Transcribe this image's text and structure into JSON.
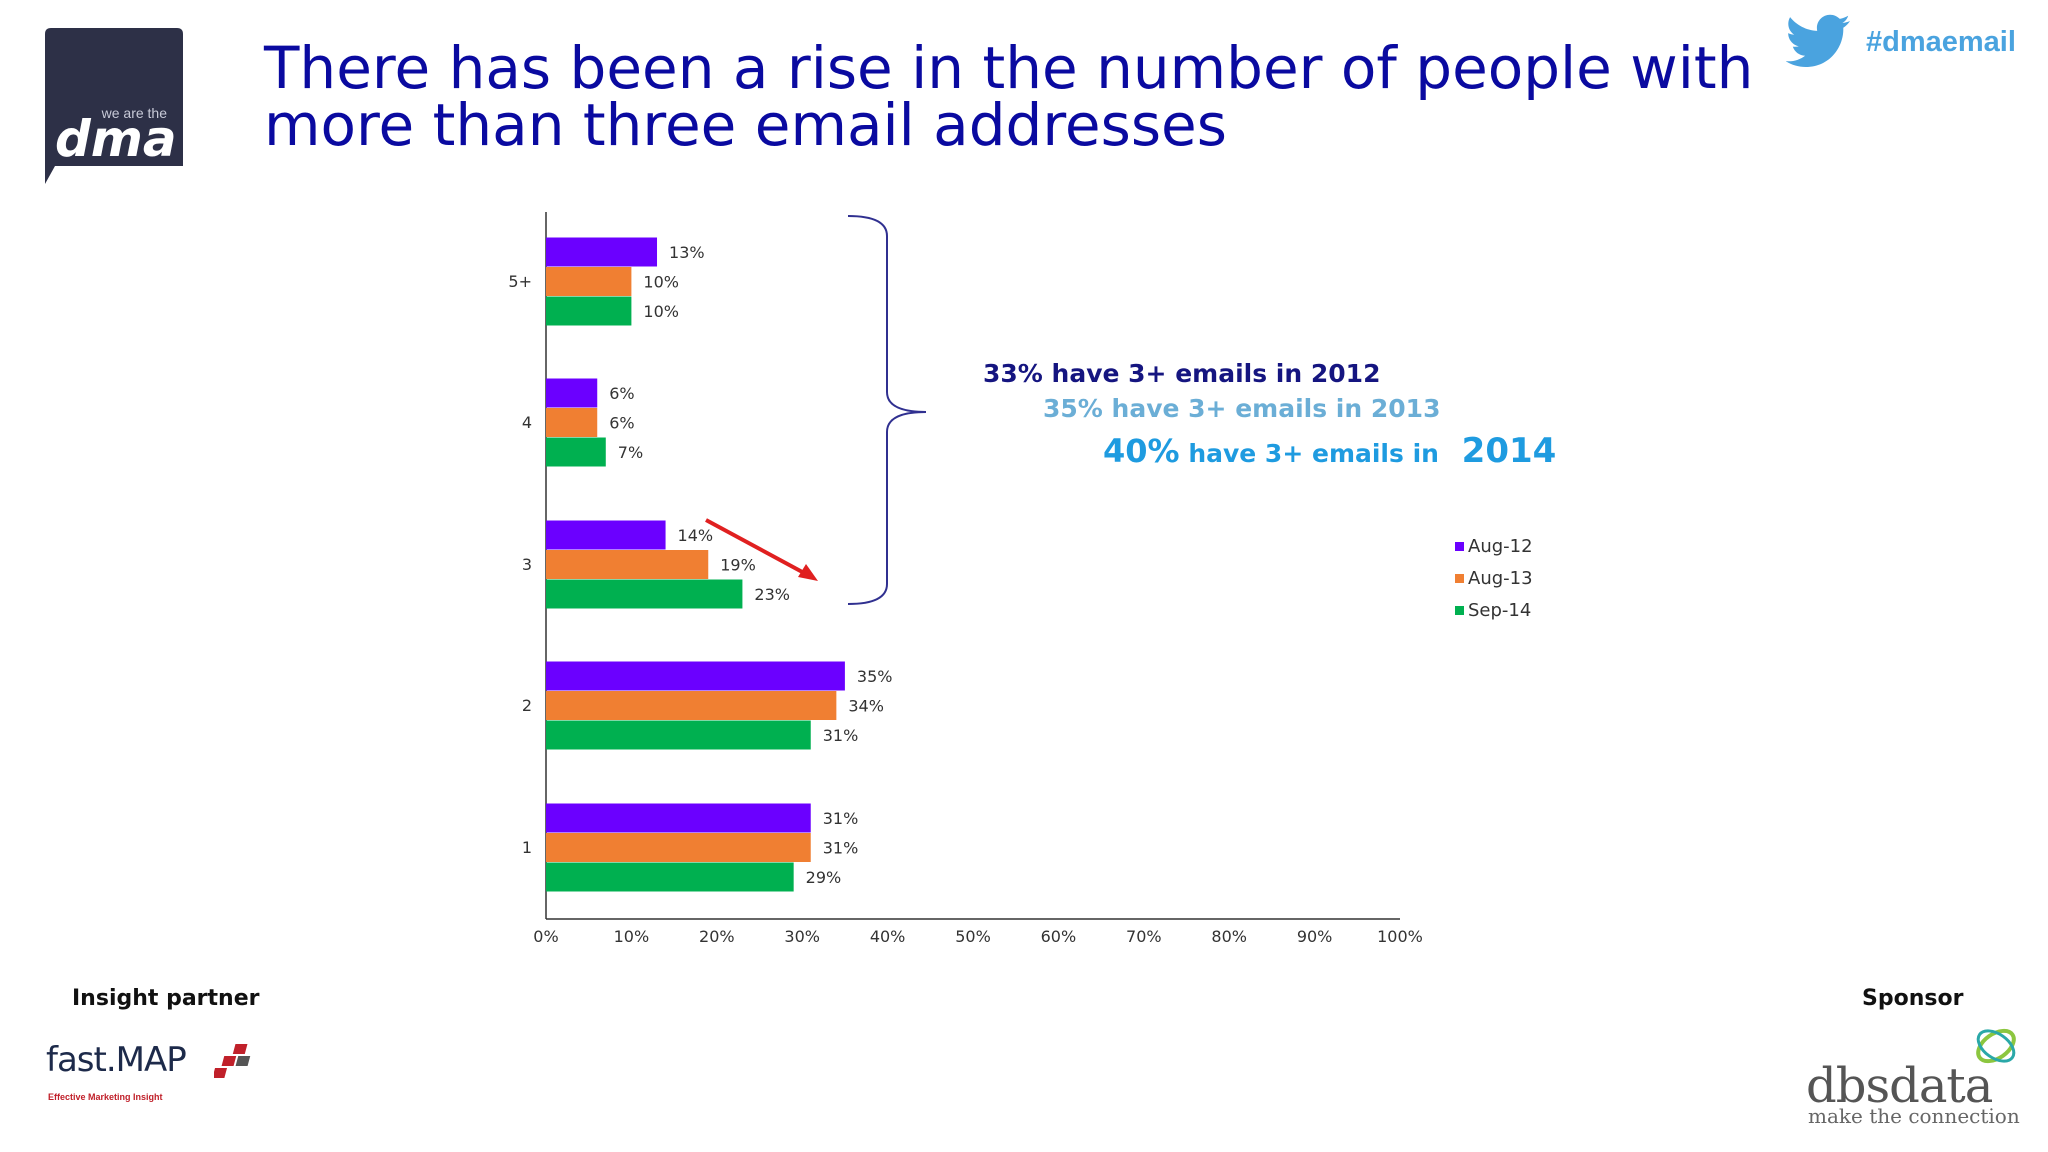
{
  "title_line1": "There has been a rise in the number of people with",
  "title_line2": "more than three email addresses",
  "hashtag": "#dmaemail",
  "logo": {
    "tag": "we are the",
    "name": "dma"
  },
  "summary": {
    "line1": "33% have 3+ emails in 2012",
    "line2": "35% have 3+ emails in 2013",
    "line3_pct": "40%",
    "line3_text": "have 3+ emails in",
    "line3_year": "2014"
  },
  "footer": {
    "insight_label": "Insight partner",
    "sponsor_label": "Sponsor",
    "insight_logo_text": "fast.MAP",
    "insight_logo_tagline": "Effective Marketing Insight",
    "sponsor_logo_name": "dbsdata",
    "sponsor_logo_tagline": "make the connection"
  },
  "colors": {
    "title": "#0a0aa0",
    "aug12": "#6b00ff",
    "aug13": "#f07f32",
    "sep14": "#00b050",
    "arrow": "#e02020"
  },
  "chart_data": {
    "type": "bar",
    "orientation": "horizontal",
    "categories": [
      "5+",
      "4",
      "3",
      "2",
      "1"
    ],
    "series": [
      {
        "name": "Aug-12",
        "values": [
          13,
          6,
          14,
          35,
          31
        ],
        "labels": [
          "13%",
          "6%",
          "14%",
          "35%",
          "31%"
        ]
      },
      {
        "name": "Aug-13",
        "values": [
          10,
          6,
          19,
          34,
          31
        ],
        "labels": [
          "10%",
          "6%",
          "19%",
          "34%",
          "31%"
        ]
      },
      {
        "name": "Sep-14",
        "values": [
          10,
          7,
          23,
          31,
          29
        ],
        "labels": [
          "10%",
          "7%",
          "23%",
          "31%",
          "29%"
        ]
      }
    ],
    "xlim": [
      0,
      100
    ],
    "xticks": [
      "0%",
      "10%",
      "20%",
      "30%",
      "40%",
      "50%",
      "60%",
      "70%",
      "80%",
      "90%",
      "100%"
    ],
    "legend_position": "right",
    "grid": false
  }
}
